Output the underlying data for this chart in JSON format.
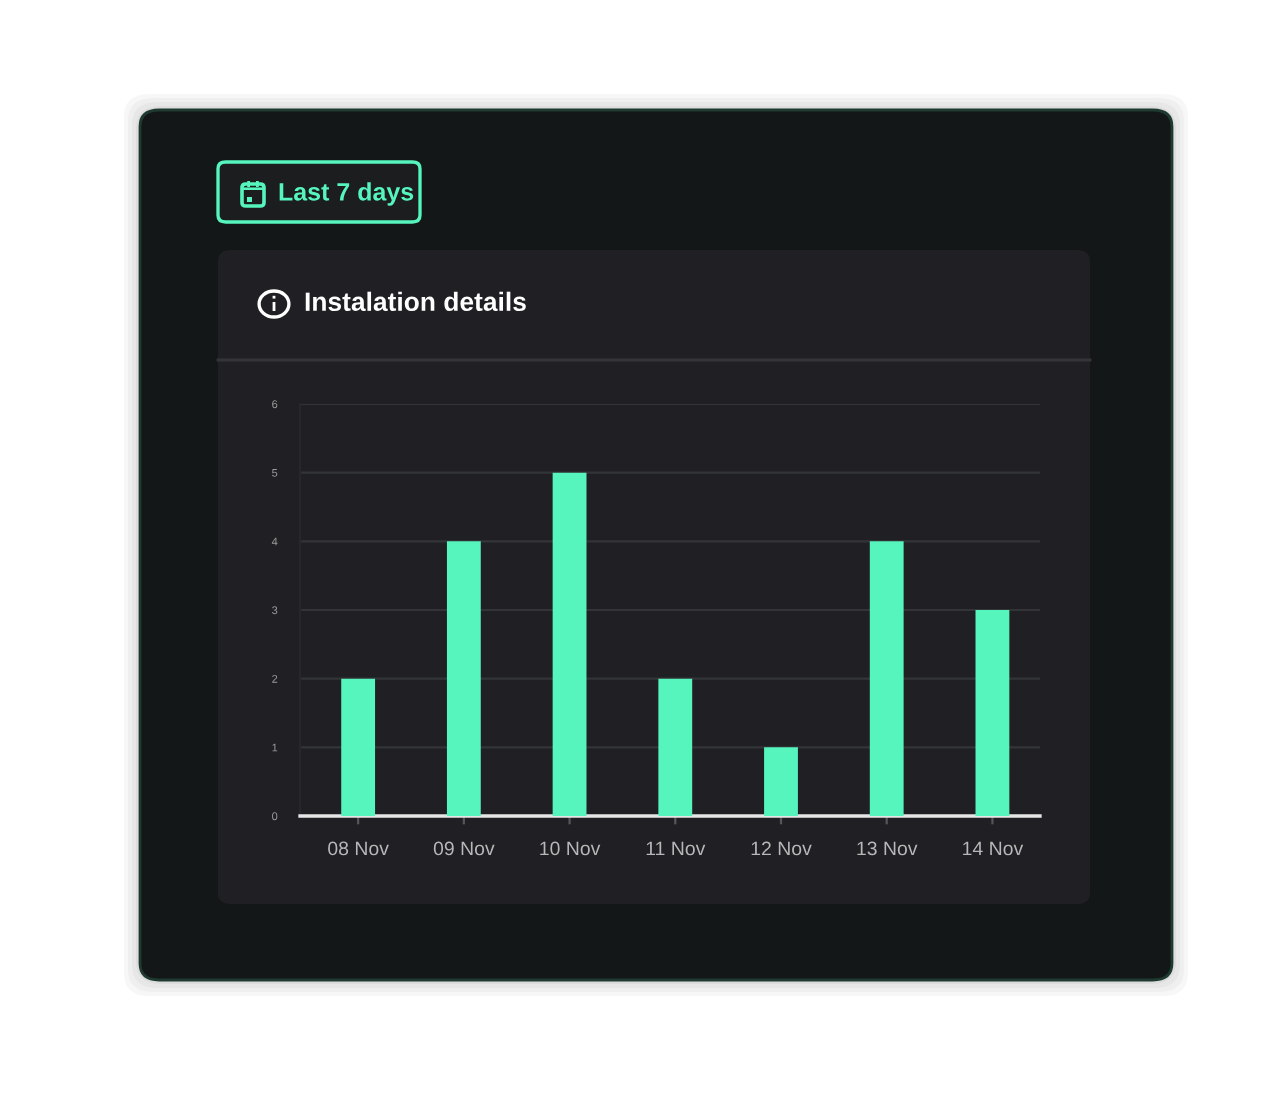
{
  "chart_data": {
    "type": "bar",
    "title": "Instalation details",
    "annotations": [
      "Last 7 days"
    ],
    "categories": [
      "08 Nov",
      "09 Nov",
      "10 Nov",
      "11 Nov",
      "12 Nov",
      "13 Nov",
      "14 Nov"
    ],
    "values": [
      2,
      4,
      5,
      2,
      1,
      4,
      3
    ],
    "color": "#55f5bd",
    "ylim": [
      0,
      6
    ],
    "yticks": [
      0,
      1,
      2,
      3,
      4,
      5,
      6
    ],
    "grid": "y"
  }
}
